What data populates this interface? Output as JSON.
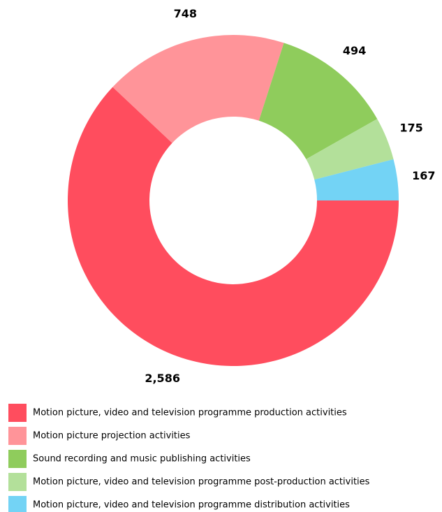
{
  "chart_data": {
    "type": "donut",
    "categories": [
      "Motion picture, video and television programme production activities",
      "Motion picture projection activities",
      "Sound recording and music publishing activities",
      "Motion picture, video and television programme post-production activities",
      "Motion picture, video and television programme distribution activities"
    ],
    "values": [
      2586,
      748,
      494,
      175,
      167
    ],
    "value_labels": [
      "2,586",
      "748",
      "494",
      "175",
      "167"
    ],
    "colors": [
      "#ff4d5e",
      "#ff9499",
      "#8fcc5c",
      "#b3e09a",
      "#73d3f5"
    ]
  }
}
